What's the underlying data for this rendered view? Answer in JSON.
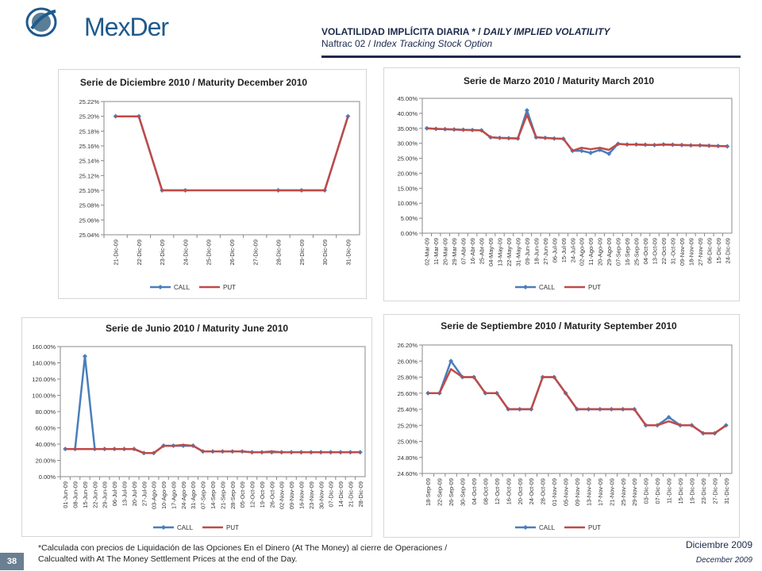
{
  "header": {
    "logo_text": "MexDer",
    "title_es": "VOLATILIDAD IMPLÍCITA DIARIA * / ",
    "title_en": "DAILY IMPLIED VOLATILITY",
    "subtitle_es": "Naftrac 02 / ",
    "subtitle_en": "Index Tracking Stock Option"
  },
  "footer": {
    "note_es": "*Calculada con precios de Liquidación de las Opciones En el Dinero (At The Money) al cierre de Operaciones /",
    "note_en": "Calcualted with At The Money Settlement Prices at the end of the Day.",
    "page_number": "38",
    "date_es": "Diciembre 2009",
    "date_en": "December 2009"
  },
  "colors": {
    "call": "#4a7ebb",
    "put": "#be4b48",
    "brand": "#1f5a8c",
    "navy": "#1b2a4a"
  },
  "chart_data": [
    {
      "type": "line",
      "title": "Serie de Diciembre 2010 / Maturity December 2010",
      "categories": [
        "21-Dic-09",
        "22-Dic-09",
        "23-Dic-09",
        "24-Dic-09",
        "25-Dic-09",
        "26-Dic-09",
        "27-Dic-09",
        "28-Dic-09",
        "29-Dic-09",
        "30-Dic-09",
        "31-Dic-09"
      ],
      "y_ticks": [
        "25.22%",
        "25.20%",
        "25.18%",
        "25.16%",
        "25.14%",
        "25.12%",
        "25.10%",
        "25.08%",
        "25.06%",
        "25.04%"
      ],
      "ylim": [
        25.04,
        25.22
      ],
      "series": [
        {
          "name": "CALL",
          "values": [
            25.2,
            25.2,
            25.1,
            25.1,
            null,
            null,
            null,
            25.1,
            25.1,
            25.1,
            25.2
          ]
        },
        {
          "name": "PUT",
          "values": [
            25.2,
            25.2,
            25.1,
            25.1,
            25.1,
            25.1,
            25.1,
            25.1,
            25.1,
            25.1,
            25.2
          ]
        }
      ],
      "legend": "bottom"
    },
    {
      "type": "line",
      "title": "Serie de Marzo 2010 / Maturity March 2010",
      "categories": [
        "02-Mar-09",
        "11-Mar-09",
        "20-Mar-09",
        "29-Mar-09",
        "07-Abr-09",
        "16-Abr-09",
        "25-Abr-09",
        "04-May-09",
        "13-May-09",
        "22-May-09",
        "31-May-09",
        "09-Jun-09",
        "18-Jun-09",
        "27-Jun-09",
        "06-Jul-09",
        "15-Jul-09",
        "24-Jul-09",
        "02-Ago-09",
        "11-Ago-09",
        "20-Ago-09",
        "29-Ago-09",
        "07-Sep-09",
        "16-Sep-09",
        "25-Sep-09",
        "04-Oct-09",
        "13-Oct-09",
        "22-Oct-09",
        "31-Oct-09",
        "09-Nov-09",
        "18-Nov-09",
        "27-Nov-09",
        "06-Dic-09",
        "15-Dic-09",
        "24-Dic-09"
      ],
      "y_ticks": [
        "45.00%",
        "40.00%",
        "35.00%",
        "30.00%",
        "25.00%",
        "20.00%",
        "15.00%",
        "10.00%",
        "5.00%",
        "0.00%"
      ],
      "ylim": [
        0,
        45
      ],
      "series": [
        {
          "name": "CALL",
          "values": [
            35,
            34.8,
            34.7,
            34.6,
            34.5,
            34.4,
            34.3,
            32,
            31.8,
            31.7,
            31.6,
            41,
            32,
            31.8,
            31.6,
            31.5,
            27.5,
            27.5,
            26.8,
            27.8,
            26.5,
            29.8,
            29.6,
            29.6,
            29.5,
            29.4,
            29.6,
            29.5,
            29.4,
            29.3,
            29.3,
            29.2,
            29.1,
            29.0
          ]
        },
        {
          "name": "PUT",
          "values": [
            35,
            34.8,
            34.7,
            34.6,
            34.5,
            34.4,
            34.3,
            32,
            31.8,
            31.7,
            31.6,
            39.5,
            32,
            31.8,
            31.6,
            31.5,
            27.5,
            28.5,
            28,
            28.5,
            27.8,
            29.8,
            29.6,
            29.6,
            29.5,
            29.4,
            29.6,
            29.5,
            29.4,
            29.3,
            29.3,
            29.2,
            29.1,
            29.0
          ]
        }
      ],
      "legend": "bottom"
    },
    {
      "type": "line",
      "title": "Serie de Junio 2010 / Maturity June 2010",
      "categories": [
        "01-Jun-09",
        "08-Jun-09",
        "15-Jun-09",
        "22-Jun-09",
        "29-Jun-09",
        "06-Jul-09",
        "13-Jul-09",
        "20-Jul-09",
        "27-Jul-09",
        "03-Ago-09",
        "10-Ago-09",
        "17-Ago-09",
        "24-Ago-09",
        "31-Ago-09",
        "07-Sep-09",
        "14-Sep-09",
        "21-Sep-09",
        "28-Sep-09",
        "05-Oct-09",
        "12-Oct-09",
        "19-Oct-09",
        "26-Oct-09",
        "02-Nov-09",
        "09-Nov-09",
        "16-Nov-09",
        "23-Nov-09",
        "30-Nov-09",
        "07-Dic-09",
        "14-Dic-09",
        "21-Dic-09",
        "28-Dic-09"
      ],
      "y_ticks": [
        "160.00%",
        "140.00%",
        "120.00%",
        "100.00%",
        "80.00%",
        "60.00%",
        "40.00%",
        "20.00%",
        "0.00%"
      ],
      "ylim": [
        0,
        160
      ],
      "series": [
        {
          "name": "CALL",
          "values": [
            34,
            34,
            148,
            34,
            34,
            34,
            34,
            34,
            29,
            29,
            38,
            38,
            38,
            38,
            31,
            31,
            31,
            31,
            31,
            30,
            30,
            30,
            30,
            30,
            30,
            30,
            30,
            30,
            30,
            30,
            30
          ]
        },
        {
          "name": "PUT",
          "values": [
            34,
            34,
            34,
            34,
            34,
            34,
            34,
            34,
            29,
            29,
            38,
            38,
            39,
            38,
            31,
            31,
            31,
            31,
            31,
            30,
            30,
            31,
            30,
            30,
            30,
            30,
            30,
            30,
            30,
            30,
            30
          ]
        }
      ],
      "legend": "bottom"
    },
    {
      "type": "line",
      "title": "Serie de Septiembre 2010 / Maturity September 2010",
      "categories": [
        "18-Sep-09",
        "22-Sep-09",
        "26-Sep-09",
        "30-Sep-09",
        "04-Oct-09",
        "08-Oct-09",
        "12-Oct-09",
        "16-Oct-09",
        "20-Oct-09",
        "24-Oct-09",
        "28-Oct-09",
        "01-Nov-09",
        "05-Nov-09",
        "09-Nov-09",
        "13-Nov-09",
        "17-Nov-09",
        "21-Nov-09",
        "25-Nov-09",
        "29-Nov-09",
        "03-Dic-09",
        "07-Dic-09",
        "11-Dic-09",
        "15-Dic-09",
        "19-Dic-09",
        "23-Dic-09",
        "27-Dic-09",
        "31-Dic-09"
      ],
      "y_ticks": [
        "26.20%",
        "26.00%",
        "25.80%",
        "25.60%",
        "25.40%",
        "25.20%",
        "25.00%",
        "24.80%",
        "24.60%"
      ],
      "ylim": [
        24.6,
        26.2
      ],
      "series": [
        {
          "name": "CALL",
          "values": [
            25.6,
            25.6,
            26.0,
            25.8,
            25.8,
            25.6,
            25.6,
            25.4,
            25.4,
            25.4,
            25.8,
            25.8,
            25.6,
            25.4,
            25.4,
            25.4,
            25.4,
            25.4,
            25.4,
            25.2,
            25.2,
            25.3,
            25.2,
            25.2,
            25.1,
            25.1,
            25.2
          ]
        },
        {
          "name": "PUT",
          "values": [
            25.6,
            25.6,
            25.9,
            25.8,
            25.8,
            25.6,
            25.6,
            25.4,
            25.4,
            25.4,
            25.8,
            25.8,
            25.6,
            25.4,
            25.4,
            25.4,
            25.4,
            25.4,
            25.4,
            25.2,
            25.2,
            25.25,
            25.2,
            25.2,
            25.1,
            25.1,
            25.2
          ]
        }
      ],
      "legend": "bottom"
    }
  ]
}
